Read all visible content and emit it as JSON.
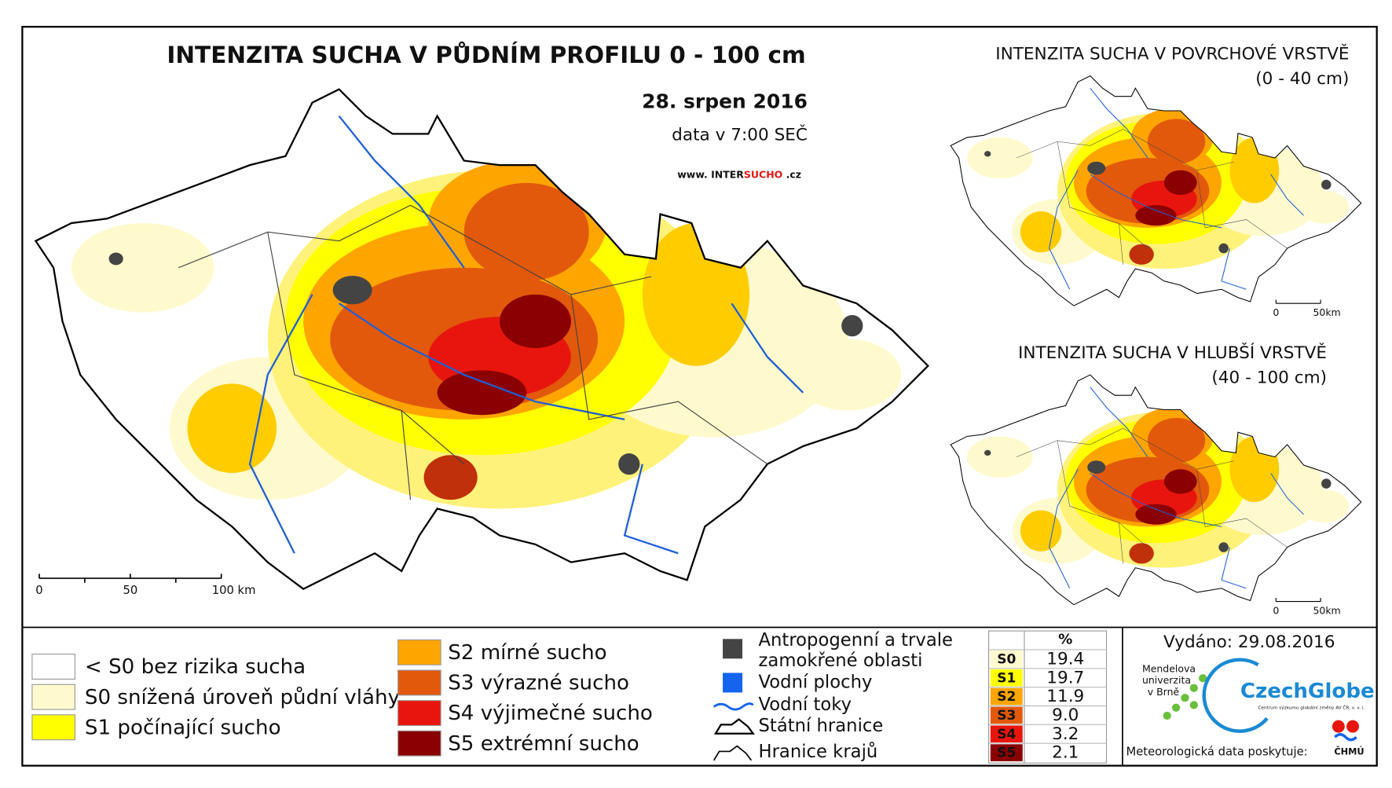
{
  "main_map": {
    "title": "INTENZITA SUCHA V PŮDNÍM PROFILU 0 - 100 cm",
    "date": "28. srpen 2016",
    "time": "data v 7:00 SEČ",
    "url_prefix": "www. INTER",
    "url_highlight": "SUCHO",
    "url_suffix": " .cz",
    "scale_labels": [
      "0",
      "50",
      "100 km"
    ]
  },
  "insets": [
    {
      "title": "INTENZITA SUCHA V POVRCHOVÉ VRSTVĚ",
      "subtitle": "(0 - 40 cm)",
      "scale_labels": [
        "0",
        "50km"
      ]
    },
    {
      "title": "INTENZITA SUCHA V HLUBŠÍ VRSTVĚ",
      "subtitle": "(40 - 100 cm)",
      "scale_labels": [
        "0",
        "50km"
      ]
    }
  ],
  "legend": {
    "drought_classes": [
      {
        "label": "< S0 bez rizika sucha",
        "color": "#ffffff"
      },
      {
        "label": "S0 snížená úroveň půdní vláhy",
        "color": "#fffacd"
      },
      {
        "label": "S1 počínající sucho",
        "color": "#ffff00"
      },
      {
        "label": "S2 mírné sucho",
        "color": "#ffa500"
      },
      {
        "label": "S3 výrazné sucho",
        "color": "#e2590c"
      },
      {
        "label": "S4 výjimečné sucho",
        "color": "#e8150e"
      },
      {
        "label": "S5 extrémní sucho",
        "color": "#8b0000"
      }
    ],
    "other_layers": [
      "Antropogenní a trvale",
      "zamokřené oblasti",
      "Vodní plochy",
      "Vodní toky",
      "Státní hranice",
      "Hranice krajů"
    ]
  },
  "table": {
    "header": "%",
    "rows": [
      [
        "S0",
        "19.4"
      ],
      [
        "S1",
        "19.7"
      ],
      [
        "S2",
        "11.9"
      ],
      [
        "S3",
        "9.0"
      ],
      [
        "S4",
        "3.2"
      ],
      [
        "S5",
        "2.1"
      ]
    ]
  },
  "footer": {
    "issued": "Vydáno: 29.08.2016",
    "mendel_line1": "Mendelova",
    "mendel_line2": "univerzita",
    "mendel_line3": "v Brně",
    "czechglobe": "CzechGlobe",
    "czechglobe_sub": "Centrum výzkumu globální změny AV ČR, v. v. i.",
    "data_provider": "Meteorologická data poskytuje:",
    "chmu": "ČHMÚ"
  }
}
